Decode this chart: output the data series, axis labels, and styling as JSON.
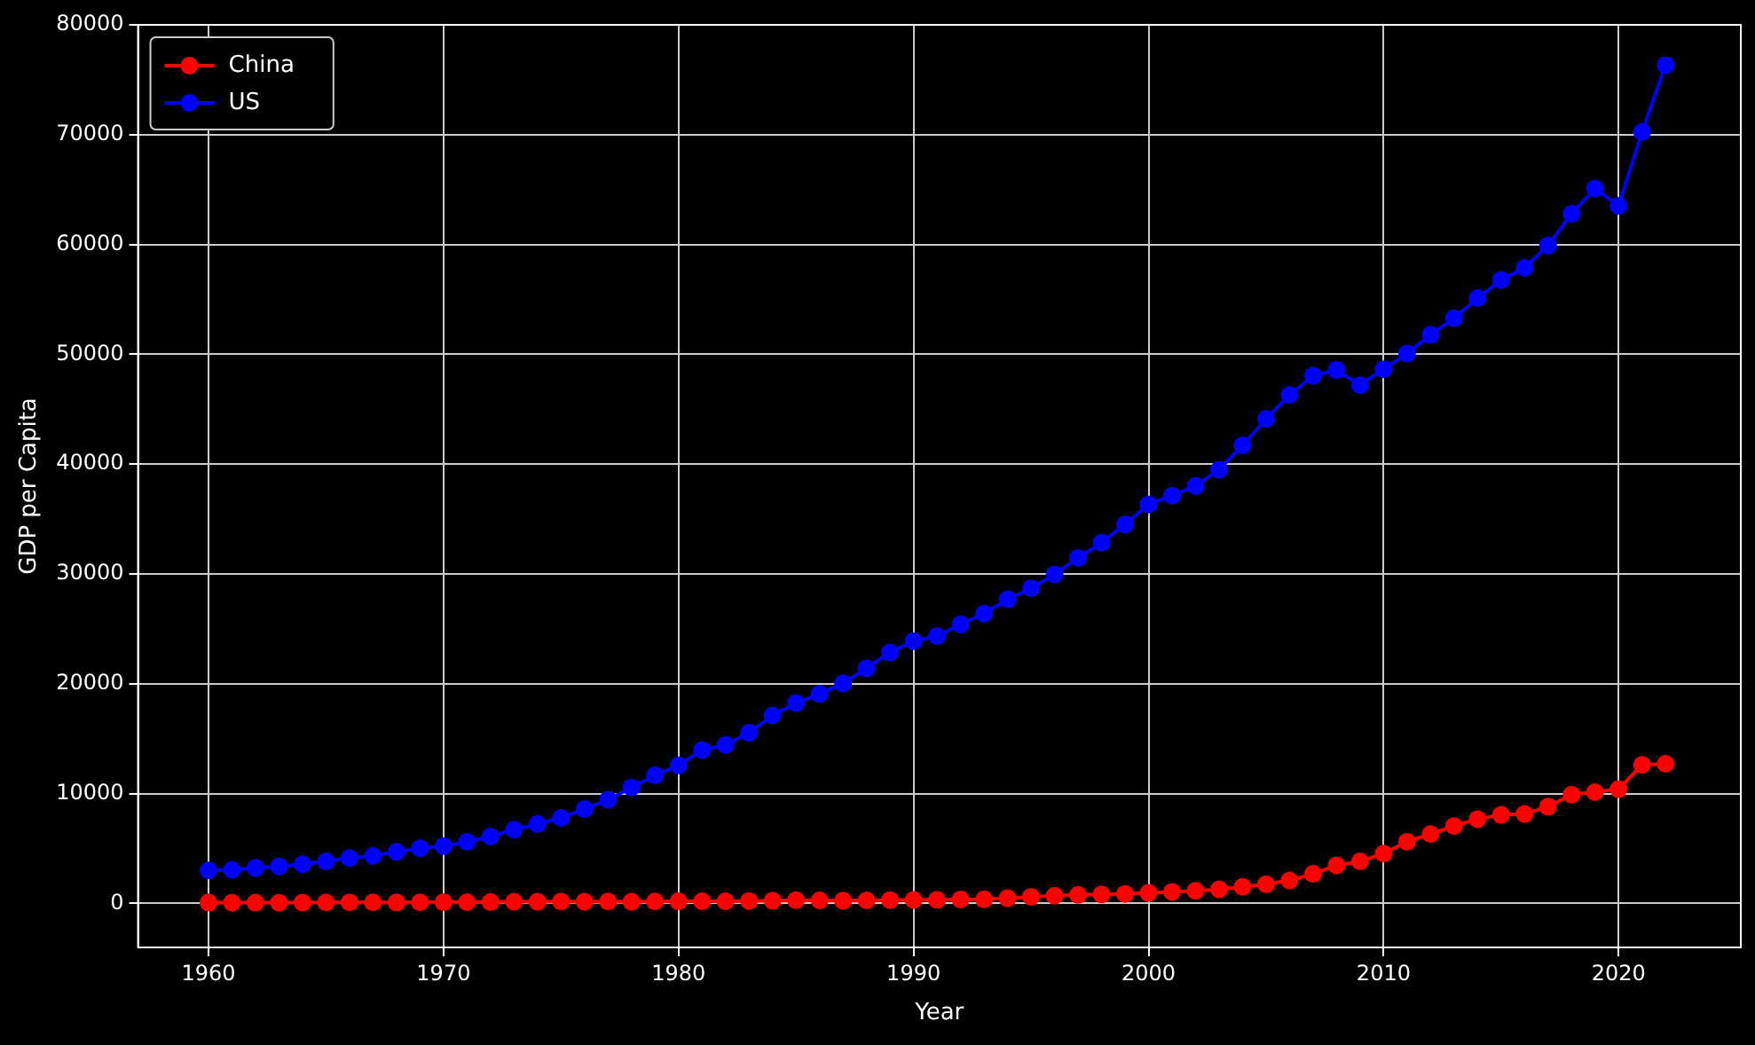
{
  "chart_data": {
    "type": "line",
    "xlabel": "Year",
    "ylabel": "GDP per Capita",
    "x": [
      1960,
      1961,
      1962,
      1963,
      1964,
      1965,
      1966,
      1967,
      1968,
      1969,
      1970,
      1971,
      1972,
      1973,
      1974,
      1975,
      1976,
      1977,
      1978,
      1979,
      1980,
      1981,
      1982,
      1983,
      1984,
      1985,
      1986,
      1987,
      1988,
      1989,
      1990,
      1991,
      1992,
      1993,
      1994,
      1995,
      1996,
      1997,
      1998,
      1999,
      2000,
      2001,
      2002,
      2003,
      2004,
      2005,
      2006,
      2007,
      2008,
      2009,
      2010,
      2011,
      2012,
      2013,
      2014,
      2015,
      2016,
      2017,
      2018,
      2019,
      2020,
      2021,
      2022
    ],
    "series": [
      {
        "name": "China",
        "color": "#ff0000",
        "values": [
          90,
          76,
          70,
          74,
          85,
          98,
          104,
          97,
          91,
          100,
          113,
          119,
          132,
          157,
          160,
          178,
          165,
          185,
          156,
          184,
          195,
          197,
          203,
          225,
          251,
          294,
          282,
          252,
          284,
          311,
          318,
          333,
          366,
          377,
          473,
          610,
          709,
          782,
          829,
          873,
          959,
          1053,
          1149,
          1289,
          1509,
          1753,
          2099,
          2694,
          3468,
          3832,
          4550,
          5618,
          6317,
          7051,
          7679,
          8067,
          8148,
          8817,
          9905,
          10144,
          10409,
          12618,
          12720
        ]
      },
      {
        "name": "US",
        "color": "#0000ff",
        "values": [
          3007,
          3067,
          3244,
          3375,
          3574,
          3828,
          4146,
          4336,
          4696,
          5032,
          5234,
          5609,
          6094,
          6726,
          7226,
          7801,
          8592,
          9453,
          10565,
          11674,
          12575,
          13976,
          14434,
          15544,
          17121,
          18237,
          19071,
          20039,
          21417,
          22857,
          23889,
          24342,
          25419,
          26387,
          27695,
          28691,
          29968,
          31459,
          32854,
          34515,
          36330,
          37134,
          38023,
          39497,
          41712,
          44115,
          46299,
          48050,
          48570,
          47195,
          48651,
          50066,
          51784,
          53291,
          55124,
          56763,
          57867,
          59915,
          62805,
          65095,
          63528,
          70248,
          76330
        ]
      }
    ],
    "xlim": [
      1957,
      2025.2
    ],
    "xticks": [
      1960,
      1970,
      1980,
      1990,
      2000,
      2010,
      2020
    ],
    "ylim": [
      -4000,
      80000
    ],
    "yticks": [
      0,
      10000,
      20000,
      30000,
      40000,
      50000,
      60000,
      70000,
      80000
    ],
    "grid": true,
    "legend": "top left",
    "marker": "circle",
    "line_style": "solid"
  }
}
